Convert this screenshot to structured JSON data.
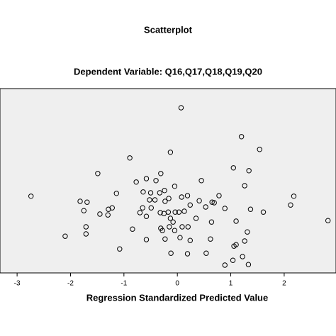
{
  "chart_data": {
    "type": "scatter",
    "title": "Scatterplot",
    "subtitle": "Dependent Variable: Q16,Q17,Q18,Q19,Q20",
    "x_label": "Regression Standardized Predicted Value",
    "color": "#000000",
    "xlim": [
      -3.32,
      2.97
    ],
    "ylim": [
      -2.575,
      3.925
    ],
    "xticks": [
      -3,
      -2,
      -1,
      0,
      1,
      2
    ],
    "x": [
      0.07,
      1.2,
      1.54,
      -0.13,
      -0.89,
      1.05,
      1.34,
      -1.49,
      -0.31,
      -0.58,
      -0.77,
      -0.4,
      0.45,
      1.26,
      -0.05,
      -0.24,
      -0.64,
      -0.5,
      -0.33,
      -1.14,
      0.78,
      0.19,
      2.18,
      -2.74,
      0.08,
      -0.16,
      -0.52,
      -0.42,
      -1.82,
      -1.69,
      0.41,
      0.65,
      0.69,
      2.12,
      -0.23,
      0.24,
      0.53,
      -0.65,
      -0.49,
      -1.22,
      -1.29,
      -1.75,
      -0.7,
      -0.32,
      -0.17,
      -0.04,
      0.03,
      -0.25,
      0.13,
      0.89,
      1.37,
      1.61,
      -1.45,
      -1.3,
      -0.58,
      -0.13,
      0.35,
      0.64,
      1.1,
      2.82,
      -1.71,
      -0.08,
      0.09,
      -0.15,
      -0.31,
      -0.84,
      -0.05,
      -0.28,
      0.2,
      1.31,
      -2.1,
      -1.71,
      -0.58,
      0.05,
      0.62,
      -0.23,
      1.1,
      1.06,
      1.26,
      0.24,
      -1.08,
      -0.12,
      0.19,
      0.54,
      1.22,
      1.04,
      0.89,
      1.33
    ],
    "values": [
      3.25,
      2.23,
      1.78,
      1.68,
      1.48,
      1.13,
      1.03,
      0.93,
      0.93,
      0.75,
      0.63,
      0.68,
      0.68,
      0.5,
      0.48,
      0.33,
      0.28,
      0.25,
      0.25,
      0.23,
      0.15,
      0.15,
      0.13,
      0.13,
      0.1,
      0.05,
      0,
      0,
      -0.05,
      -0.08,
      -0.03,
      -0.08,
      -0.1,
      -0.18,
      -0.05,
      -0.18,
      -0.25,
      -0.28,
      -0.28,
      -0.28,
      -0.33,
      -0.38,
      -0.45,
      -0.45,
      -0.43,
      -0.43,
      -0.43,
      -0.48,
      -0.4,
      -0.3,
      -0.33,
      -0.43,
      -0.5,
      -0.53,
      -0.58,
      -0.65,
      -0.65,
      -0.78,
      -0.75,
      -0.73,
      -0.95,
      -0.78,
      -0.95,
      -0.95,
      -1.0,
      -1.03,
      -1.08,
      -1.08,
      -0.95,
      -1.13,
      -1.28,
      -1.2,
      -1.4,
      -1.33,
      -1.38,
      -1.38,
      -1.58,
      -1.63,
      -1.45,
      -1.43,
      -1.73,
      -1.88,
      -1.9,
      -1.88,
      -2.0,
      -2.13,
      -2.3,
      -2.28
    ]
  }
}
